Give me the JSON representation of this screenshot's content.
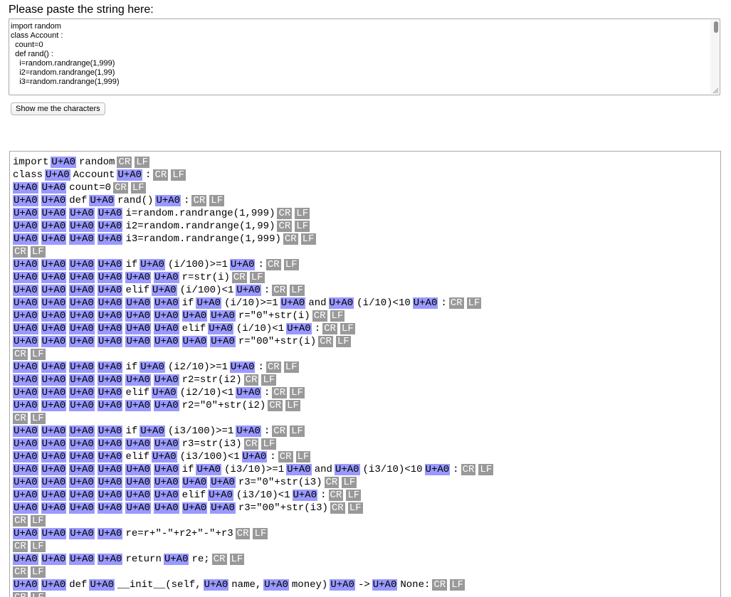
{
  "prompt": "Please paste the string here:",
  "input": {
    "value": "import random\nclass Account :\n  count=0\n  def rand() :\n    i=random.randrange(1,999)\n    i2=random.randrange(1,99)\n    i3=random.randrange(1,999)"
  },
  "button": {
    "label": "Show me the characters"
  },
  "markers": {
    "space": "U+A0",
    "cr": "CR",
    "lf": "LF"
  },
  "output_lines": [
    [
      {
        "t": "import"
      },
      {
        "s": 1
      },
      {
        "t": "random"
      },
      {
        "cr": 1
      },
      {
        "lf": 1
      }
    ],
    [
      {
        "t": "class"
      },
      {
        "s": 1
      },
      {
        "t": "Account"
      },
      {
        "s": 1
      },
      {
        "t": ":"
      },
      {
        "cr": 1
      },
      {
        "lf": 1
      }
    ],
    [
      {
        "s": 2
      },
      {
        "t": "count=0"
      },
      {
        "cr": 1
      },
      {
        "lf": 1
      }
    ],
    [
      {
        "s": 2
      },
      {
        "t": "def"
      },
      {
        "s": 1
      },
      {
        "t": "rand()"
      },
      {
        "s": 1
      },
      {
        "t": ":"
      },
      {
        "cr": 1
      },
      {
        "lf": 1
      }
    ],
    [
      {
        "s": 4
      },
      {
        "t": "i=random.randrange(1,999)"
      },
      {
        "cr": 1
      },
      {
        "lf": 1
      }
    ],
    [
      {
        "s": 4
      },
      {
        "t": "i2=random.randrange(1,99)"
      },
      {
        "cr": 1
      },
      {
        "lf": 1
      }
    ],
    [
      {
        "s": 4
      },
      {
        "t": "i3=random.randrange(1,999)"
      },
      {
        "cr": 1
      },
      {
        "lf": 1
      }
    ],
    [
      {
        "cr": 1
      },
      {
        "lf": 1
      }
    ],
    [
      {
        "s": 4
      },
      {
        "t": "if"
      },
      {
        "s": 1
      },
      {
        "t": "(i/100)>=1"
      },
      {
        "s": 1
      },
      {
        "t": ":"
      },
      {
        "cr": 1
      },
      {
        "lf": 1
      }
    ],
    [
      {
        "s": 6
      },
      {
        "t": "r=str(i)"
      },
      {
        "cr": 1
      },
      {
        "lf": 1
      }
    ],
    [
      {
        "s": 4
      },
      {
        "t": "elif"
      },
      {
        "s": 1
      },
      {
        "t": "(i/100)<1"
      },
      {
        "s": 1
      },
      {
        "t": ":"
      },
      {
        "cr": 1
      },
      {
        "lf": 1
      }
    ],
    [
      {
        "s": 6
      },
      {
        "t": "if"
      },
      {
        "s": 1
      },
      {
        "t": "(i/10)>=1"
      },
      {
        "s": 1
      },
      {
        "t": "and"
      },
      {
        "s": 1
      },
      {
        "t": "(i/10)<10"
      },
      {
        "s": 1
      },
      {
        "t": ":"
      },
      {
        "cr": 1
      },
      {
        "lf": 1
      }
    ],
    [
      {
        "s": 8
      },
      {
        "t": "r=\"0\"+str(i)"
      },
      {
        "cr": 1
      },
      {
        "lf": 1
      }
    ],
    [
      {
        "s": 6
      },
      {
        "t": "elif"
      },
      {
        "s": 1
      },
      {
        "t": "(i/10)<1"
      },
      {
        "s": 1
      },
      {
        "t": ":"
      },
      {
        "cr": 1
      },
      {
        "lf": 1
      }
    ],
    [
      {
        "s": 8
      },
      {
        "t": "r=\"00\"+str(i)"
      },
      {
        "cr": 1
      },
      {
        "lf": 1
      }
    ],
    [
      {
        "cr": 1
      },
      {
        "lf": 1
      }
    ],
    [
      {
        "s": 4
      },
      {
        "t": "if"
      },
      {
        "s": 1
      },
      {
        "t": "(i2/10)>=1"
      },
      {
        "s": 1
      },
      {
        "t": ":"
      },
      {
        "cr": 1
      },
      {
        "lf": 1
      }
    ],
    [
      {
        "s": 6
      },
      {
        "t": "r2=str(i2)"
      },
      {
        "cr": 1
      },
      {
        "lf": 1
      }
    ],
    [
      {
        "s": 4
      },
      {
        "t": "elif"
      },
      {
        "s": 1
      },
      {
        "t": "(i2/10)<1"
      },
      {
        "s": 1
      },
      {
        "t": ":"
      },
      {
        "cr": 1
      },
      {
        "lf": 1
      }
    ],
    [
      {
        "s": 6
      },
      {
        "t": "r2=\"0\"+str(i2)"
      },
      {
        "cr": 1
      },
      {
        "lf": 1
      }
    ],
    [
      {
        "cr": 1
      },
      {
        "lf": 1
      }
    ],
    [
      {
        "s": 4
      },
      {
        "t": "if"
      },
      {
        "s": 1
      },
      {
        "t": "(i3/100)>=1"
      },
      {
        "s": 1
      },
      {
        "t": ":"
      },
      {
        "cr": 1
      },
      {
        "lf": 1
      }
    ],
    [
      {
        "s": 6
      },
      {
        "t": "r3=str(i3)"
      },
      {
        "cr": 1
      },
      {
        "lf": 1
      }
    ],
    [
      {
        "s": 4
      },
      {
        "t": "elif"
      },
      {
        "s": 1
      },
      {
        "t": "(i3/100)<1"
      },
      {
        "s": 1
      },
      {
        "t": ":"
      },
      {
        "cr": 1
      },
      {
        "lf": 1
      }
    ],
    [
      {
        "s": 6
      },
      {
        "t": "if"
      },
      {
        "s": 1
      },
      {
        "t": "(i3/10)>=1"
      },
      {
        "s": 1
      },
      {
        "t": "and"
      },
      {
        "s": 1
      },
      {
        "t": "(i3/10)<10"
      },
      {
        "s": 1
      },
      {
        "t": ":"
      },
      {
        "cr": 1
      },
      {
        "lf": 1
      }
    ],
    [
      {
        "s": 8
      },
      {
        "t": "r3=\"0\"+str(i3)"
      },
      {
        "cr": 1
      },
      {
        "lf": 1
      }
    ],
    [
      {
        "s": 6
      },
      {
        "t": "elif"
      },
      {
        "s": 1
      },
      {
        "t": "(i3/10)<1"
      },
      {
        "s": 1
      },
      {
        "t": ":"
      },
      {
        "cr": 1
      },
      {
        "lf": 1
      }
    ],
    [
      {
        "s": 8
      },
      {
        "t": "r3=\"00\"+str(i3)"
      },
      {
        "cr": 1
      },
      {
        "lf": 1
      }
    ],
    [
      {
        "cr": 1
      },
      {
        "lf": 1
      }
    ],
    [
      {
        "s": 4
      },
      {
        "t": "re=r+\"-\"+r2+\"-\"+r3"
      },
      {
        "cr": 1
      },
      {
        "lf": 1
      }
    ],
    [
      {
        "cr": 1
      },
      {
        "lf": 1
      }
    ],
    [
      {
        "s": 4
      },
      {
        "t": "return"
      },
      {
        "s": 1
      },
      {
        "t": "re;"
      },
      {
        "cr": 1
      },
      {
        "lf": 1
      }
    ],
    [
      {
        "cr": 1
      },
      {
        "lf": 1
      }
    ],
    [
      {
        "s": 2
      },
      {
        "t": "def"
      },
      {
        "s": 1
      },
      {
        "t": "__init__(self,"
      },
      {
        "s": 1
      },
      {
        "t": "name,"
      },
      {
        "s": 1
      },
      {
        "t": "money)"
      },
      {
        "s": 1
      },
      {
        "t": "->"
      },
      {
        "s": 1
      },
      {
        "t": "None:"
      },
      {
        "cr": 1
      },
      {
        "lf": 1
      }
    ],
    [
      {
        "cr": 1
      },
      {
        "lf": 1
      }
    ]
  ]
}
